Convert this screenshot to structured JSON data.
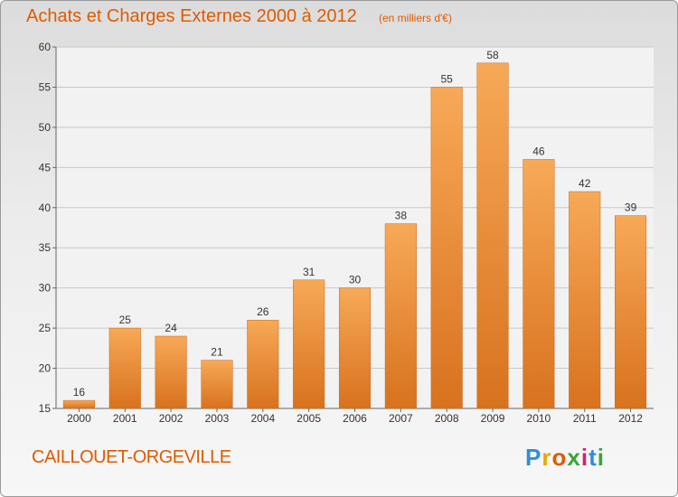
{
  "title": "Achats et Charges Externes 2000 à 2012",
  "subtitle": "(en milliers d'€)",
  "commune": "CAILLOUET-ORGEVILLE",
  "logo": {
    "text": "Proxiti",
    "colors": [
      "#2f8fd8",
      "#e8a800",
      "#e05a00",
      "#3aa53a",
      "#d81f6e",
      "#2f8fd8",
      "#3aa53a"
    ]
  },
  "colors": {
    "bar_top": "#f7a957",
    "bar_bottom": "#d8721e",
    "title": "#e05a00",
    "grid": "#c8c8c8"
  },
  "chart_data": {
    "type": "bar",
    "categories": [
      "2000",
      "2001",
      "2002",
      "2003",
      "2004",
      "2005",
      "2006",
      "2007",
      "2008",
      "2009",
      "2010",
      "2011",
      "2012"
    ],
    "values": [
      16,
      25,
      24,
      21,
      26,
      31,
      30,
      38,
      55,
      58,
      46,
      42,
      39
    ],
    "ylim": [
      15,
      60
    ],
    "yticks": [
      15,
      20,
      25,
      30,
      35,
      40,
      45,
      50,
      55,
      60
    ],
    "grid": true,
    "data_labels": true
  }
}
